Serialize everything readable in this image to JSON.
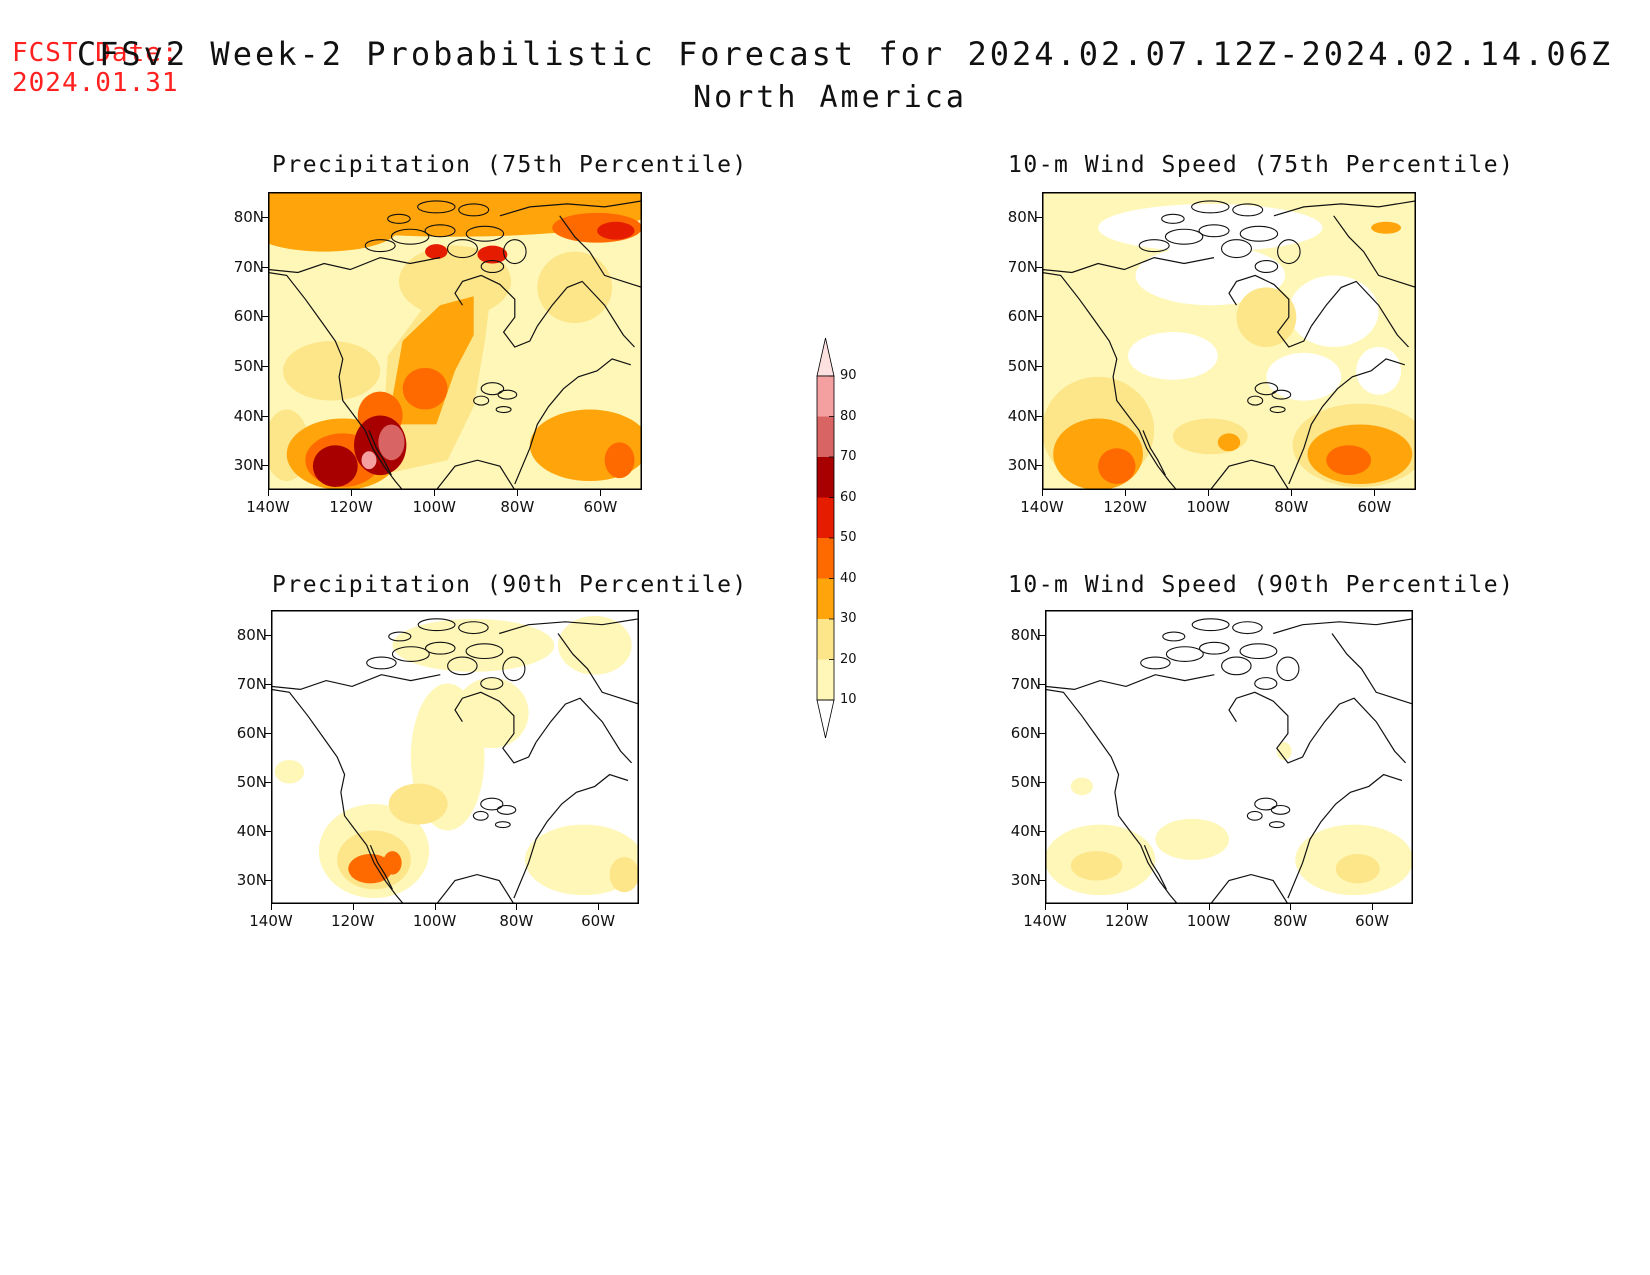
{
  "fcst_date": {
    "label": "FCST Date:",
    "value": "2024.01.31"
  },
  "title": {
    "line1": "CFSv2 Week-2 Probabilistic Forecast for 2024.02.07.12Z-2024.02.14.06Z",
    "line2": "North America"
  },
  "lat_ticks": [
    "80N",
    "70N",
    "60N",
    "50N",
    "40N",
    "30N"
  ],
  "lon_ticks": [
    "140W",
    "120W",
    "100W",
    "80W",
    "60W"
  ],
  "panels": [
    {
      "id": "precip75",
      "title": "Precipitation (75th Percentile)"
    },
    {
      "id": "wind75",
      "title": "10-m Wind Speed (75th Percentile)"
    },
    {
      "id": "precip90",
      "title": "Precipitation (90th Percentile)"
    },
    {
      "id": "wind90",
      "title": "10-m Wind Speed (90th Percentile)"
    }
  ],
  "colorbar": {
    "levels": [
      "10",
      "20",
      "30",
      "40",
      "50",
      "60",
      "70",
      "80",
      "90"
    ],
    "colors": [
      "#fff7b8",
      "#fde68a",
      "#ffa40a",
      "#ff6a00",
      "#e61c00",
      "#a80000",
      "#d96464",
      "#f4a0a0",
      "#fde0e0"
    ]
  },
  "colors": {
    "fcst_date": "#ff2020",
    "coast": "#111111",
    "frame": "#000000"
  }
}
